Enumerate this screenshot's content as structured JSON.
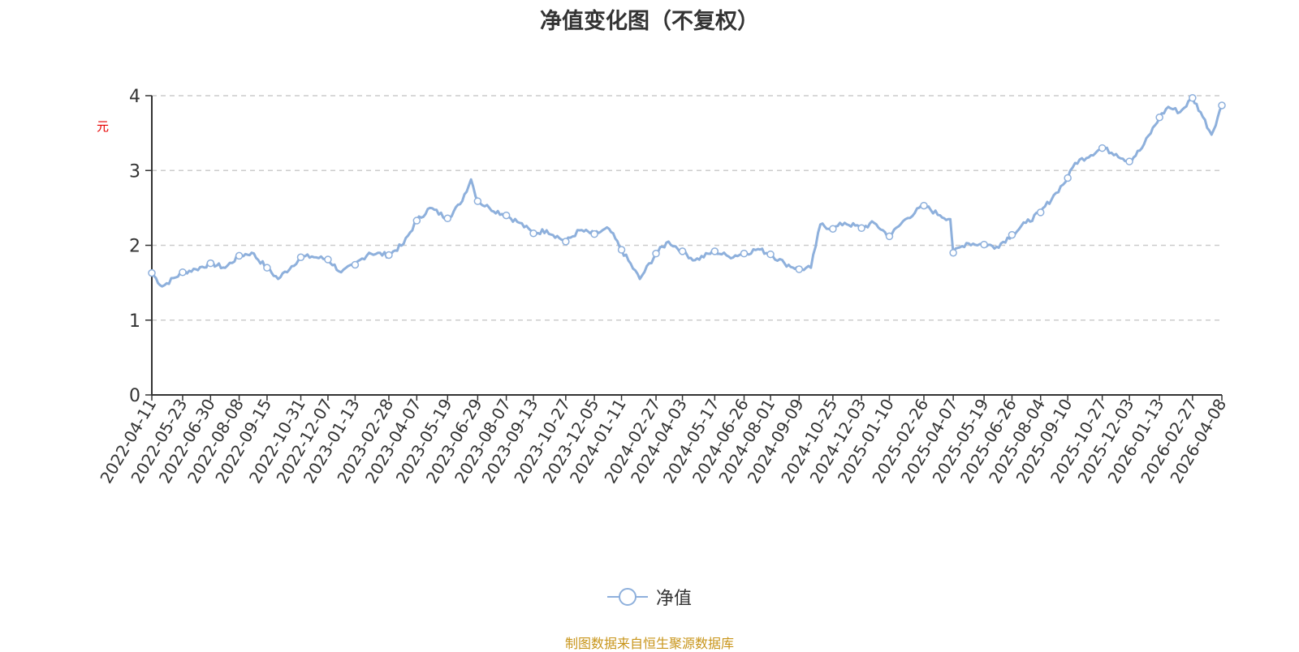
{
  "chart_data": {
    "type": "line",
    "title": "净值变化图（不复权）",
    "ylabel": "元",
    "ylim": [
      0,
      4
    ],
    "yticks": [
      0,
      1,
      2,
      3,
      4
    ],
    "grid": "y-dashed",
    "legend_position": "bottom-center",
    "line_color": "#8eb0dc",
    "x_tick_labels": [
      "2022-04-11",
      "2022-05-23",
      "2022-06-30",
      "2022-08-08",
      "2022-09-15",
      "2022-10-31",
      "2022-12-07",
      "2023-01-13",
      "2023-02-28",
      "2023-04-07",
      "2023-05-19",
      "2023-06-29",
      "2023-08-07",
      "2023-09-13",
      "2023-10-27",
      "2023-12-05",
      "2024-01-11",
      "2024-02-27",
      "2024-04-03",
      "2024-05-17",
      "2024-06-26",
      "2024-08-01",
      "2024-09-09",
      "2024-10-25",
      "2024-12-03",
      "2025-01-10",
      "2025-02-26",
      "2025-04-07",
      "2025-05-19",
      "2025-06-26",
      "2025-08-04",
      "2025-09-10",
      "2025-10-27",
      "2025-12-03",
      "2026-01-13",
      "2026-02-27",
      "2026-04-08"
    ],
    "series": [
      {
        "name": "净值",
        "x": [
          "2022-04-11",
          "2022-04-25",
          "2022-05-23",
          "2022-06-10",
          "2022-06-30",
          "2022-07-20",
          "2022-08-08",
          "2022-08-25",
          "2022-09-15",
          "2022-09-30",
          "2022-10-31",
          "2022-11-15",
          "2022-12-07",
          "2022-12-25",
          "2023-01-13",
          "2023-02-01",
          "2023-02-28",
          "2023-03-20",
          "2023-04-07",
          "2023-04-25",
          "2023-05-19",
          "2023-06-05",
          "2023-06-20",
          "2023-06-29",
          "2023-07-15",
          "2023-08-07",
          "2023-08-25",
          "2023-09-13",
          "2023-10-01",
          "2023-10-27",
          "2023-11-15",
          "2023-12-05",
          "2023-12-25",
          "2024-01-11",
          "2024-02-05",
          "2024-02-27",
          "2024-03-15",
          "2024-04-03",
          "2024-04-20",
          "2024-05-17",
          "2024-06-05",
          "2024-06-26",
          "2024-07-15",
          "2024-08-01",
          "2024-08-20",
          "2024-09-09",
          "2024-09-25",
          "2024-10-08",
          "2024-10-25",
          "2024-11-10",
          "2024-12-03",
          "2024-12-20",
          "2025-01-10",
          "2025-02-01",
          "2025-02-26",
          "2025-03-20",
          "2025-04-03",
          "2025-04-07",
          "2025-04-25",
          "2025-05-19",
          "2025-06-05",
          "2025-06-26",
          "2025-07-15",
          "2025-08-04",
          "2025-08-25",
          "2025-09-10",
          "2025-09-20",
          "2025-10-27",
          "2025-11-15",
          "2025-12-03",
          "2025-12-20",
          "2026-01-13",
          "2026-01-25",
          "2026-02-10",
          "2026-02-27",
          "2026-03-10",
          "2026-03-25",
          "2026-04-08"
        ],
        "values": [
          1.63,
          1.45,
          1.64,
          1.68,
          1.76,
          1.7,
          1.86,
          1.9,
          1.7,
          1.55,
          1.84,
          1.85,
          1.81,
          1.64,
          1.74,
          1.9,
          1.87,
          2.02,
          2.33,
          2.5,
          2.36,
          2.55,
          2.88,
          2.59,
          2.5,
          2.4,
          2.3,
          2.16,
          2.2,
          2.05,
          2.2,
          2.15,
          2.22,
          1.94,
          1.55,
          1.89,
          2.05,
          1.92,
          1.8,
          1.92,
          1.85,
          1.89,
          1.95,
          1.88,
          1.76,
          1.68,
          1.7,
          2.28,
          2.22,
          2.3,
          2.23,
          2.3,
          2.12,
          2.35,
          2.53,
          2.4,
          2.35,
          1.9,
          2.03,
          2.01,
          1.98,
          2.14,
          2.3,
          2.44,
          2.7,
          2.9,
          3.1,
          3.3,
          3.22,
          3.12,
          3.3,
          3.71,
          3.85,
          3.78,
          3.97,
          3.78,
          3.48,
          3.87
        ],
        "markers_at": [
          "2022-04-11",
          "2022-05-23",
          "2022-06-30",
          "2022-08-08",
          "2022-09-15",
          "2022-10-31",
          "2022-12-07",
          "2023-01-13",
          "2023-02-28",
          "2023-04-07",
          "2023-05-19",
          "2023-06-29",
          "2023-08-07",
          "2023-09-13",
          "2023-10-27",
          "2023-12-05",
          "2024-01-11",
          "2024-02-27",
          "2024-04-03",
          "2024-05-17",
          "2024-06-26",
          "2024-08-01",
          "2024-09-09",
          "2024-10-25",
          "2024-12-03",
          "2025-01-10",
          "2025-02-26",
          "2025-04-07",
          "2025-05-19",
          "2025-06-26",
          "2025-08-04",
          "2025-09-10",
          "2025-10-27",
          "2025-12-03",
          "2026-01-13",
          "2026-02-27",
          "2026-04-08"
        ]
      }
    ]
  },
  "legend": {
    "label": "净值"
  },
  "source": "制图数据来自恒生聚源数据库"
}
